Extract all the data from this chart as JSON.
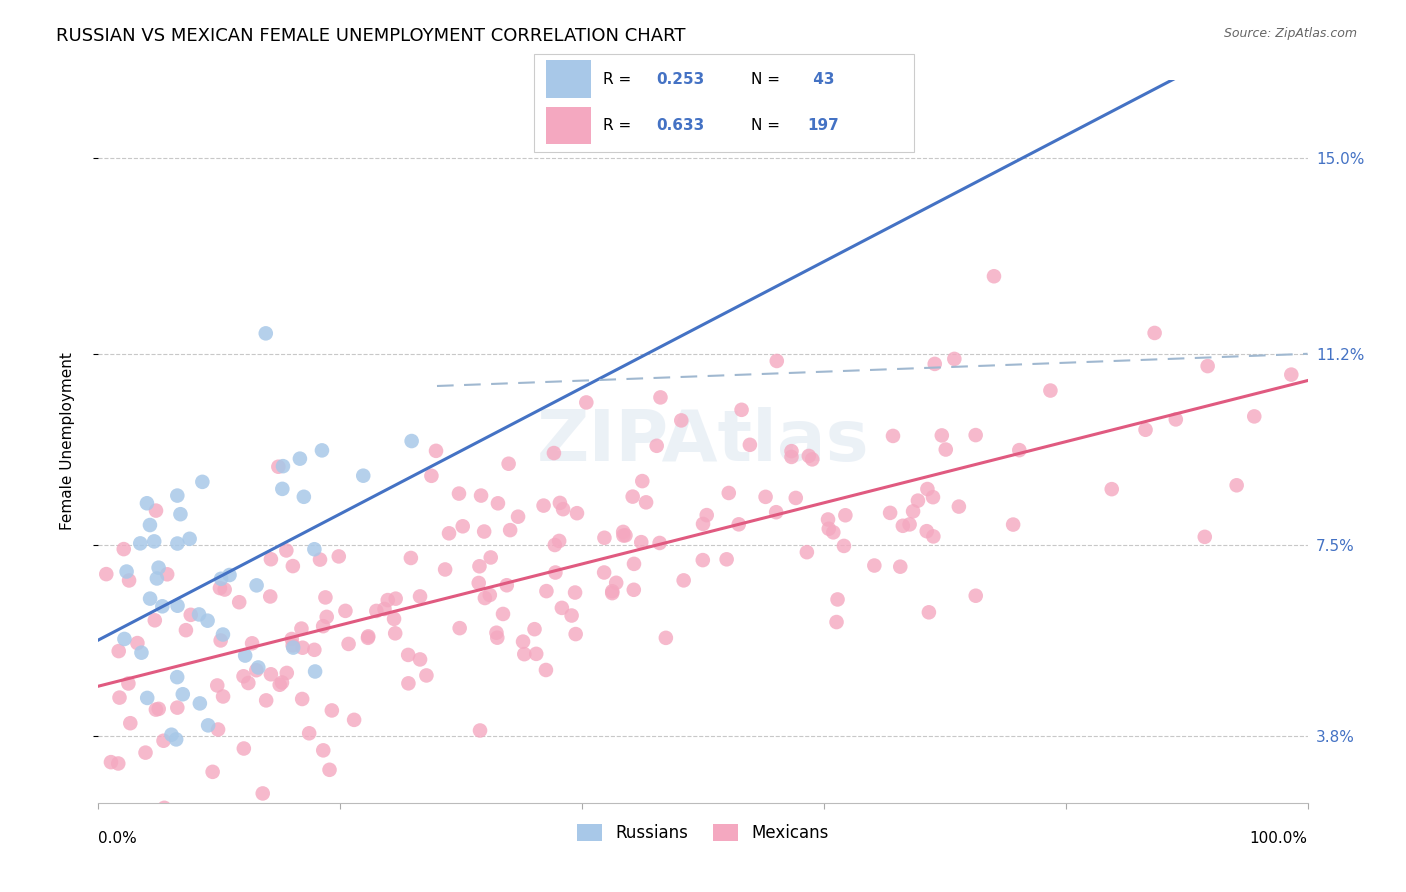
{
  "title": "RUSSIAN VS MEXICAN FEMALE UNEMPLOYMENT CORRELATION CHART",
  "source": "Source: ZipAtlas.com",
  "ylabel": "Female Unemployment",
  "ytick_values": [
    3.8,
    7.5,
    11.2,
    15.0
  ],
  "xmin": 0.0,
  "xmax": 100.0,
  "ymin": 2.5,
  "ymax": 16.5,
  "watermark": "ZIPAtlas",
  "russian_color": "#a8c8e8",
  "mexican_color": "#f4a8c0",
  "russian_line_color": "#4472c4",
  "mexican_line_color": "#e05a80",
  "dashed_line_color": "#a0b8d0",
  "title_fontsize": 13,
  "axis_label_fontsize": 11,
  "tick_fontsize": 11,
  "legend_fontsize": 12,
  "russian_seed": 42,
  "mexican_seed": 7,
  "russian_n": 43,
  "mexican_n": 197,
  "russian_R": 0.253,
  "mexican_R": 0.633
}
